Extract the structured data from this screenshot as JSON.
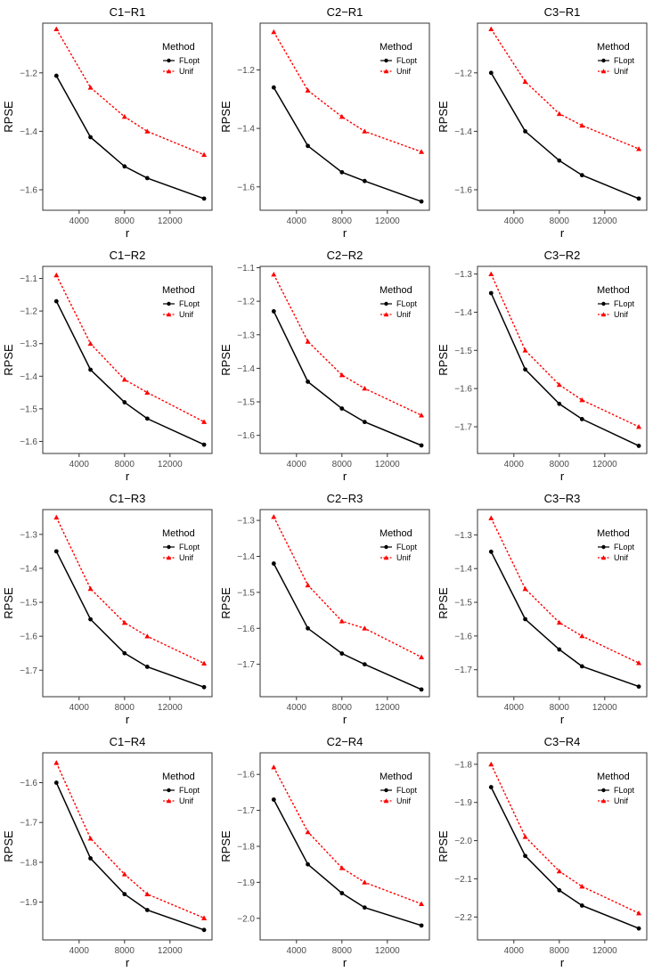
{
  "legend": {
    "title": "Method",
    "items": [
      {
        "label": "FLopt",
        "color": "#000000",
        "marker": "circle",
        "dash": "solid"
      },
      {
        "label": "Unif",
        "color": "#ff0000",
        "marker": "triangle",
        "dash": "dotted"
      }
    ]
  },
  "chart_data": [
    {
      "type": "line",
      "title": "C1−R1",
      "xlabel": "r",
      "ylabel": "RPSE",
      "x": [
        2000,
        5000,
        8000,
        10000,
        15000
      ],
      "xlim": [
        800,
        15700
      ],
      "ylim": [
        -1.67,
        -1.03
      ],
      "xticks": [
        4000,
        8000,
        12000
      ],
      "xtick_labels": [
        "4000",
        "8000",
        "12000"
      ],
      "yticks": [
        -1.2,
        -1.4,
        -1.6
      ],
      "ytick_labels": [
        "−1.2",
        "−1.4",
        "−1.6"
      ],
      "series": [
        {
          "name": "FLopt",
          "values": [
            -1.21,
            -1.42,
            -1.52,
            -1.56,
            -1.63
          ]
        },
        {
          "name": "Unif",
          "values": [
            -1.05,
            -1.25,
            -1.35,
            -1.4,
            -1.48
          ]
        }
      ]
    },
    {
      "type": "line",
      "title": "C2−R1",
      "xlabel": "r",
      "ylabel": "RPSE",
      "x": [
        2000,
        5000,
        8000,
        10000,
        15000
      ],
      "xlim": [
        800,
        15700
      ],
      "ylim": [
        -1.68,
        -1.04
      ],
      "xticks": [
        4000,
        8000,
        12000
      ],
      "xtick_labels": [
        "4000",
        "8000",
        "12000"
      ],
      "yticks": [
        -1.2,
        -1.4,
        -1.6
      ],
      "ytick_labels": [
        "−1.2",
        "−1.4",
        "−1.6"
      ],
      "series": [
        {
          "name": "FLopt",
          "values": [
            -1.26,
            -1.46,
            -1.55,
            -1.58,
            -1.65
          ]
        },
        {
          "name": "Unif",
          "values": [
            -1.07,
            -1.27,
            -1.36,
            -1.41,
            -1.48
          ]
        }
      ]
    },
    {
      "type": "line",
      "title": "C3−R1",
      "xlabel": "r",
      "ylabel": "RPSE",
      "x": [
        2000,
        5000,
        8000,
        10000,
        15000
      ],
      "xlim": [
        800,
        15700
      ],
      "ylim": [
        -1.67,
        -1.03
      ],
      "xticks": [
        4000,
        8000,
        12000
      ],
      "xtick_labels": [
        "4000",
        "8000",
        "12000"
      ],
      "yticks": [
        -1.2,
        -1.4,
        -1.6
      ],
      "ytick_labels": [
        "−1.2",
        "−1.4",
        "−1.6"
      ],
      "series": [
        {
          "name": "FLopt",
          "values": [
            -1.2,
            -1.4,
            -1.5,
            -1.55,
            -1.63
          ]
        },
        {
          "name": "Unif",
          "values": [
            -1.05,
            -1.23,
            -1.34,
            -1.38,
            -1.46
          ]
        }
      ]
    },
    {
      "type": "line",
      "title": "C1−R2",
      "xlabel": "r",
      "ylabel": "RPSE",
      "x": [
        2000,
        5000,
        8000,
        10000,
        15000
      ],
      "xlim": [
        800,
        15700
      ],
      "ylim": [
        -1.637,
        -1.063
      ],
      "xticks": [
        4000,
        8000,
        12000
      ],
      "xtick_labels": [
        "4000",
        "8000",
        "12000"
      ],
      "yticks": [
        -1.1,
        -1.2,
        -1.3,
        -1.4,
        -1.5,
        -1.6
      ],
      "ytick_labels": [
        "−1.1",
        "−1.2",
        "−1.3",
        "−1.4",
        "−1.5",
        "−1.6"
      ],
      "series": [
        {
          "name": "FLopt",
          "values": [
            -1.17,
            -1.38,
            -1.48,
            -1.53,
            -1.61
          ]
        },
        {
          "name": "Unif",
          "values": [
            -1.09,
            -1.3,
            -1.41,
            -1.45,
            -1.54
          ]
        }
      ]
    },
    {
      "type": "line",
      "title": "C2−R2",
      "xlabel": "r",
      "ylabel": "RPSE",
      "x": [
        2000,
        5000,
        8000,
        10000,
        15000
      ],
      "xlim": [
        800,
        15700
      ],
      "ylim": [
        -1.654,
        -1.096
      ],
      "xticks": [
        4000,
        8000,
        12000
      ],
      "xtick_labels": [
        "4000",
        "8000",
        "12000"
      ],
      "yticks": [
        -1.1,
        -1.2,
        -1.3,
        -1.4,
        -1.5,
        -1.6
      ],
      "ytick_labels": [
        "−1.1",
        "−1.2",
        "−1.3",
        "−1.4",
        "−1.5",
        "−1.6"
      ],
      "series": [
        {
          "name": "FLopt",
          "values": [
            -1.23,
            -1.44,
            -1.52,
            -1.56,
            -1.63
          ]
        },
        {
          "name": "Unif",
          "values": [
            -1.12,
            -1.32,
            -1.42,
            -1.46,
            -1.54
          ]
        }
      ]
    },
    {
      "type": "line",
      "title": "C3−R2",
      "xlabel": "r",
      "ylabel": "RPSE",
      "x": [
        2000,
        5000,
        8000,
        10000,
        15000
      ],
      "xlim": [
        800,
        15700
      ],
      "ylim": [
        -1.77,
        -1.28
      ],
      "xticks": [
        4000,
        8000,
        12000
      ],
      "xtick_labels": [
        "4000",
        "8000",
        "12000"
      ],
      "yticks": [
        -1.3,
        -1.4,
        -1.5,
        -1.6,
        -1.7
      ],
      "ytick_labels": [
        "−1.3",
        "−1.4",
        "−1.5",
        "−1.6",
        "−1.7"
      ],
      "series": [
        {
          "name": "FLopt",
          "values": [
            -1.35,
            -1.55,
            -1.64,
            -1.68,
            -1.75
          ]
        },
        {
          "name": "Unif",
          "values": [
            -1.3,
            -1.5,
            -1.59,
            -1.63,
            -1.7
          ]
        }
      ]
    },
    {
      "type": "line",
      "title": "C1−R3",
      "xlabel": "r",
      "ylabel": "RPSE",
      "x": [
        2000,
        5000,
        8000,
        10000,
        15000
      ],
      "xlim": [
        800,
        15700
      ],
      "ylim": [
        -1.778,
        -1.227
      ],
      "xticks": [
        4000,
        8000,
        12000
      ],
      "xtick_labels": [
        "4000",
        "8000",
        "12000"
      ],
      "yticks": [
        -1.3,
        -1.4,
        -1.5,
        -1.6,
        -1.7
      ],
      "ytick_labels": [
        "−1.3",
        "−1.4",
        "−1.5",
        "−1.6",
        "−1.7"
      ],
      "series": [
        {
          "name": "FLopt",
          "values": [
            -1.35,
            -1.55,
            -1.65,
            -1.69,
            -1.75
          ]
        },
        {
          "name": "Unif",
          "values": [
            -1.25,
            -1.46,
            -1.56,
            -1.6,
            -1.68
          ]
        }
      ]
    },
    {
      "type": "line",
      "title": "C2−R3",
      "xlabel": "r",
      "ylabel": "RPSE",
      "x": [
        2000,
        5000,
        8000,
        10000,
        15000
      ],
      "xlim": [
        800,
        15700
      ],
      "ylim": [
        -1.79,
        -1.27
      ],
      "xticks": [
        4000,
        8000,
        12000
      ],
      "xtick_labels": [
        "4000",
        "8000",
        "12000"
      ],
      "yticks": [
        -1.3,
        -1.4,
        -1.5,
        -1.6,
        -1.7
      ],
      "ytick_labels": [
        "−1.3",
        "−1.4",
        "−1.5",
        "−1.6",
        "−1.7"
      ],
      "series": [
        {
          "name": "FLopt",
          "values": [
            -1.42,
            -1.6,
            -1.67,
            -1.7,
            -1.77
          ]
        },
        {
          "name": "Unif",
          "values": [
            -1.29,
            -1.48,
            -1.58,
            -1.6,
            -1.68
          ]
        }
      ]
    },
    {
      "type": "line",
      "title": "C3−R3",
      "xlabel": "r",
      "ylabel": "RPSE",
      "x": [
        2000,
        5000,
        8000,
        10000,
        15000
      ],
      "xlim": [
        800,
        15700
      ],
      "ylim": [
        -1.78,
        -1.225
      ],
      "xticks": [
        4000,
        8000,
        12000
      ],
      "xtick_labels": [
        "4000",
        "8000",
        "12000"
      ],
      "yticks": [
        -1.3,
        -1.4,
        -1.5,
        -1.6,
        -1.7
      ],
      "ytick_labels": [
        "−1.3",
        "−1.4",
        "−1.5",
        "−1.6",
        "−1.7"
      ],
      "series": [
        {
          "name": "FLopt",
          "values": [
            -1.35,
            -1.55,
            -1.64,
            -1.69,
            -1.75
          ]
        },
        {
          "name": "Unif",
          "values": [
            -1.25,
            -1.46,
            -1.56,
            -1.6,
            -1.68
          ]
        }
      ]
    },
    {
      "type": "line",
      "title": "C1−R4",
      "xlabel": "r",
      "ylabel": "RPSE",
      "x": [
        2000,
        5000,
        8000,
        10000,
        15000
      ],
      "xlim": [
        800,
        15700
      ],
      "ylim": [
        -1.995,
        -1.525
      ],
      "xticks": [
        4000,
        8000,
        12000
      ],
      "xtick_labels": [
        "4000",
        "8000",
        "12000"
      ],
      "yticks": [
        -1.6,
        -1.7,
        -1.8,
        -1.9
      ],
      "ytick_labels": [
        "−1.6",
        "−1.7",
        "−1.8",
        "−1.9"
      ],
      "series": [
        {
          "name": "FLopt",
          "values": [
            -1.6,
            -1.79,
            -1.88,
            -1.92,
            -1.97
          ]
        },
        {
          "name": "Unif",
          "values": [
            -1.55,
            -1.74,
            -1.83,
            -1.88,
            -1.94
          ]
        }
      ]
    },
    {
      "type": "line",
      "title": "C2−R4",
      "xlabel": "r",
      "ylabel": "RPSE",
      "x": [
        2000,
        5000,
        8000,
        10000,
        15000
      ],
      "xlim": [
        800,
        15700
      ],
      "ylim": [
        -2.06,
        -1.54
      ],
      "xticks": [
        4000,
        8000,
        12000
      ],
      "xtick_labels": [
        "4000",
        "8000",
        "12000"
      ],
      "yticks": [
        -1.6,
        -1.7,
        -1.8,
        -1.9,
        -2.0
      ],
      "ytick_labels": [
        "−1.6",
        "−1.7",
        "−1.8",
        "−1.9",
        "−2.0"
      ],
      "series": [
        {
          "name": "FLopt",
          "values": [
            -1.67,
            -1.85,
            -1.93,
            -1.97,
            -2.02
          ]
        },
        {
          "name": "Unif",
          "values": [
            -1.58,
            -1.76,
            -1.86,
            -1.9,
            -1.96
          ]
        }
      ]
    },
    {
      "type": "line",
      "title": "C3−R4",
      "xlabel": "r",
      "ylabel": "RPSE",
      "x": [
        2000,
        5000,
        8000,
        10000,
        15000
      ],
      "xlim": [
        800,
        15700
      ],
      "ylim": [
        -2.26,
        -1.77
      ],
      "xticks": [
        4000,
        8000,
        12000
      ],
      "xtick_labels": [
        "4000",
        "8000",
        "12000"
      ],
      "yticks": [
        -1.8,
        -1.9,
        -2.0,
        -2.1,
        -2.2
      ],
      "ytick_labels": [
        "−1.8",
        "−1.9",
        "−2.0",
        "−2.1",
        "−2.2"
      ],
      "series": [
        {
          "name": "FLopt",
          "values": [
            -1.86,
            -2.04,
            -2.13,
            -2.17,
            -2.23
          ]
        },
        {
          "name": "Unif",
          "values": [
            -1.8,
            -1.99,
            -2.08,
            -2.12,
            -2.19
          ]
        }
      ]
    }
  ]
}
